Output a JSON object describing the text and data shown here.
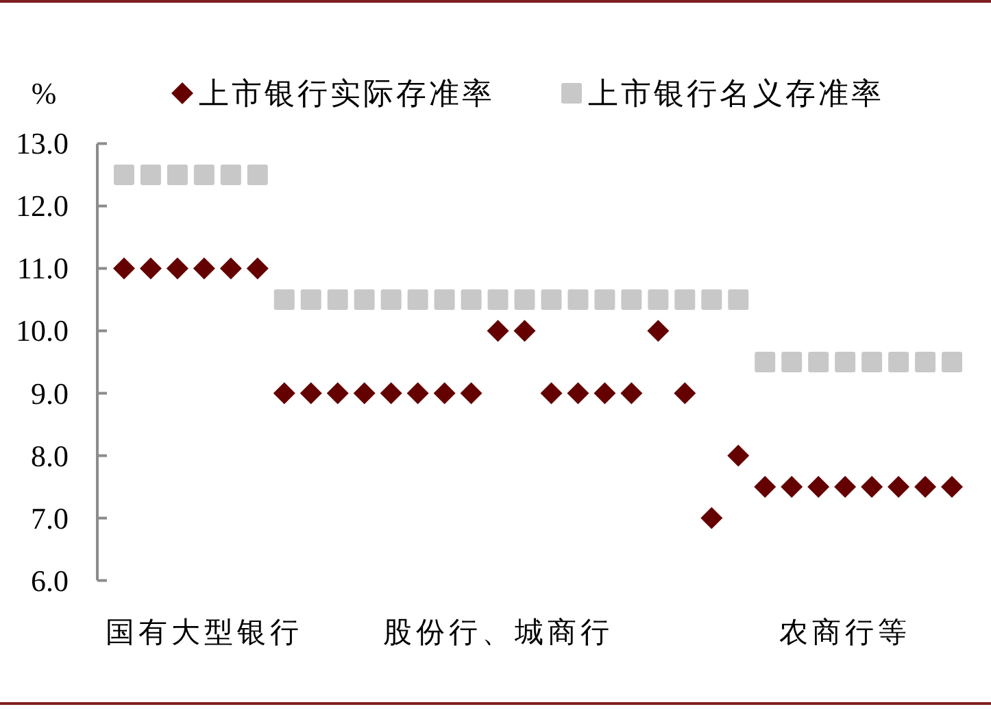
{
  "chart_data": {
    "type": "scatter",
    "ylabel": "%",
    "categories": [
      null,
      null,
      null,
      "国有大型银行",
      null,
      null,
      null,
      null,
      null,
      null,
      null,
      null,
      null,
      null,
      "股份行、城商行",
      null,
      null,
      null,
      null,
      null,
      null,
      null,
      null,
      null,
      null,
      null,
      null,
      "农商行等",
      null,
      null,
      null,
      null
    ],
    "series": [
      {
        "name": "上市银行实际存准率",
        "color": "#640000",
        "marker": "diamond",
        "values": [
          11.0,
          11.0,
          11.0,
          11.0,
          11.0,
          11.0,
          9.0,
          9.0,
          9.0,
          9.0,
          9.0,
          9.0,
          9.0,
          9.0,
          10.0,
          10.0,
          9.0,
          9.0,
          9.0,
          9.0,
          10.0,
          9.0,
          7.0,
          8.0,
          7.5,
          7.5,
          7.5,
          7.5,
          7.5,
          7.5,
          7.5,
          7.5
        ]
      },
      {
        "name": "上市银行名义存准率",
        "color": "#c8c8c8",
        "marker": "square",
        "values": [
          12.5,
          12.5,
          12.5,
          12.5,
          12.5,
          12.5,
          10.5,
          10.5,
          10.5,
          10.5,
          10.5,
          10.5,
          10.5,
          10.5,
          10.5,
          10.5,
          10.5,
          10.5,
          10.5,
          10.5,
          10.5,
          10.5,
          10.5,
          10.5,
          9.5,
          9.5,
          9.5,
          9.5,
          9.5,
          9.5,
          9.5,
          9.5
        ]
      }
    ],
    "ylim": [
      6,
      13
    ],
    "yticks": [
      {
        "value": 6,
        "label": "6.0"
      },
      {
        "value": 7,
        "label": "7.0"
      },
      {
        "value": 8,
        "label": "8.0"
      },
      {
        "value": 9,
        "label": "9.0"
      },
      {
        "value": 10,
        "label": "10.0"
      },
      {
        "value": 11,
        "label": "11.0"
      },
      {
        "value": 12,
        "label": "12.0"
      },
      {
        "value": 13,
        "label": "13.0"
      }
    ],
    "legend": "top"
  }
}
